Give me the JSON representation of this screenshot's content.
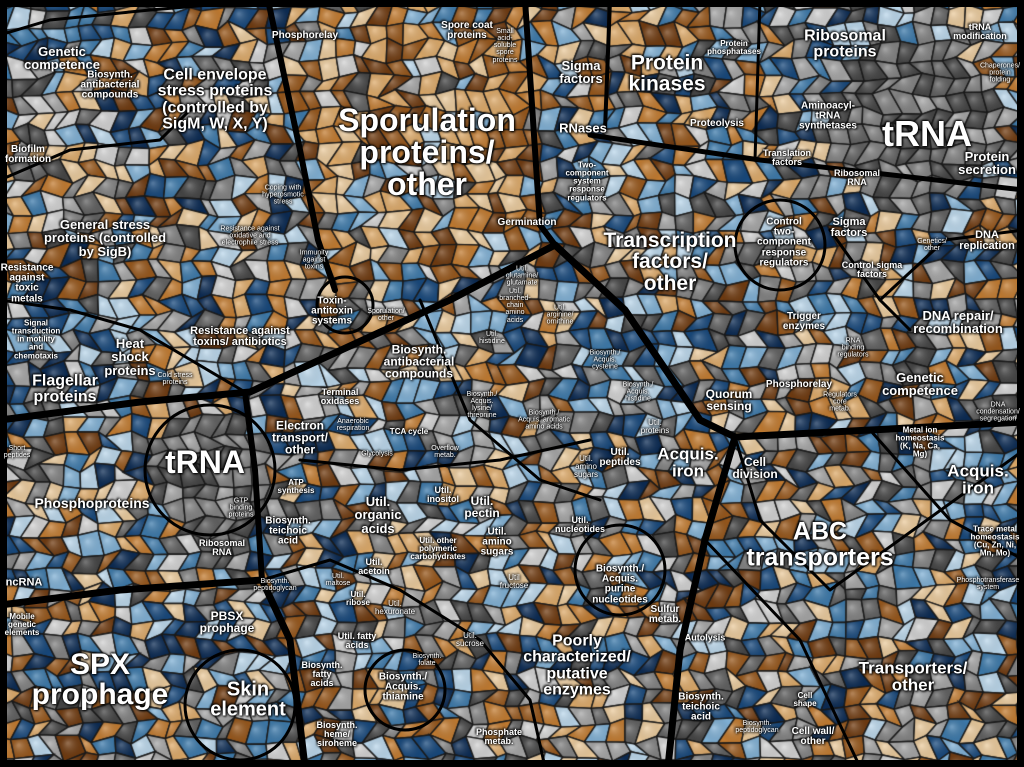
{
  "title": "Proteomap",
  "palette": {
    "browns": [
      "#6e3a10",
      "#95561b",
      "#c07a30",
      "#dba868",
      "#e8c89a"
    ],
    "blues": [
      "#0b2a52",
      "#17477a",
      "#3c78a8",
      "#7eaed2",
      "#b8d4e8"
    ],
    "greys": [
      "#444444",
      "#5f5f5f",
      "#808080",
      "#a3a3a3",
      "#cfcfcf"
    ]
  },
  "labels": [
    "Genetic\ncompetence",
    "Biosynth.\nantibacterial\ncompounds",
    "Cell envelope\nstress proteins\n(controlled by\nSigM, W, X, Y)",
    "Sporulation\nproteins/\nother",
    "Spore coat\nproteins",
    "Phosphorelay",
    "Small\nacid-\nsoluble\nspore\nproteins",
    "Biofilm\nformation",
    "General stress\nproteins (controlled\nby SigB)",
    "Coping with\nhyperosmotic\nstress",
    "Resistance against\noxidative and\nelectrophile stress",
    "Immunity\nagainst\ntoxins",
    "Resistance\nagainst\ntoxic\nmetals",
    "Signal\ntransduction\nin motility\nand\nchemotaxis",
    "Heat\nshock\nproteins",
    "Cold stress\nproteins",
    "Resistance against\ntoxins/ antibiotics",
    "Flagellar\nproteins",
    "Toxin-\nantitoxin\nsystems",
    "Sporulation/\nother",
    "Germination",
    "Sigma\nfactors",
    "Protein\nkinases",
    "RNases",
    "Protein\nphosphatases",
    "Proteolysis",
    "Two-\ncomponent\nsystem\nresponse\nregulators",
    "Transcription\nfactors/\nother",
    "Ribosomal\nproteins",
    "tRNA\nmodification",
    "Chaperones/\nprotein\nfolding",
    "Aminoacyl-\ntRNA\nsynthetases",
    "tRNA",
    "Protein\nsecretion",
    "Translation\nfactors",
    "Ribosomal\nRNA",
    "Control\ntwo-\ncomponent\nresponse\nregulators",
    "Sigma\nfactors",
    "Control sigma\nfactors",
    "DNA\nreplication",
    "Genetics/\nother",
    "DNA repair/\nrecombination",
    "Trigger\nenzymes",
    "RNA\nbinding\nregulators",
    "Phosphorelay",
    "Genetic\ncompetence",
    "Quorum\nsensing",
    "DNA\ncondensation/\nsegregation",
    "Regulators\ncore\nmetab.",
    "Biosynth.\nantibacterial\ncompounds",
    "Terminal\noxidases",
    "Electron\ntransport/\nother",
    "TCA cycle",
    "Util.\nbranched-\nchain\namino\nacids",
    "Util.\nglutamine/\nglutamate",
    "Util.\narginine/\nornithine",
    "Util.\nhistidine",
    "Biosynth./\nAcquis.\ncysteine",
    "Biosynth./\nAcquis.\nlysine/\nthreonine",
    "Biosynth./\nAcquis.\nhistidine",
    "Biosynth./\nAcquis. aromatic\namino acids",
    "Util.\nproteins",
    "Acquis.\niron",
    "Cell\ndivision",
    "Util.\npeptides",
    "Util.\namino\nsugars",
    "tRNA",
    "Phosphoproteins",
    "GTP\nbinding\nproteins",
    "Ribosomal\nRNA",
    "ATP\nsynthesis",
    "Biosynth.\nteichoic\nacid",
    "Util.\norganic\nacids",
    "Util.\ninositol",
    "Util.\npectin",
    "Util. other\npolymeric\ncarbohydrates",
    "Util.\namino\nsugars",
    "Util.\nacetoin",
    "Util.\nnucleotides",
    "Biosynth./\nAcquis.\npurine\nnucleotides",
    "ABC\ntransporters",
    "Metal ion\nhomeostasis\n(K, Na, Ca,\nMg)",
    "Acquis.\niron",
    "Trace metal\nhomeostasis\n(Cu, Zn, Ni,\nMn, Mo)",
    "Phosphotransferase\nsystem",
    "ncRNA",
    "Mobile\ngenetic\nelements",
    "Short\npeptides",
    "SPX\nprophage",
    "PBSX\nprophage",
    "Skin\nelement",
    "Util.\nribose",
    "Util. fatty\nacids",
    "Biosynth.\nfatty\nacids",
    "Biosynth./\nAcquis.\nthiamine",
    "Biosynth.\nheme/\nsiroheme",
    "Phosphate\nmetab.",
    "Poorly\ncharacterized/\nputative\nenzymes",
    "Sulfur\nmetab.",
    "Autolysis",
    "Biosynth.\nteichoic\nacid",
    "Cell\nshape",
    "Cell wall/\nother",
    "Transporters/\nother",
    "Util\nfructose",
    "Util.\nsucrose",
    "Util.\nhexuronate",
    "Biosynth.\npeptidoglycan",
    "Biosynth.\npeptidoglycan",
    "Glycolysis",
    "Anaerobic\nrespiration",
    "Overflow\nmetab.",
    "Util.\nmaltose",
    "Biosynth.\nfolate"
  ]
}
